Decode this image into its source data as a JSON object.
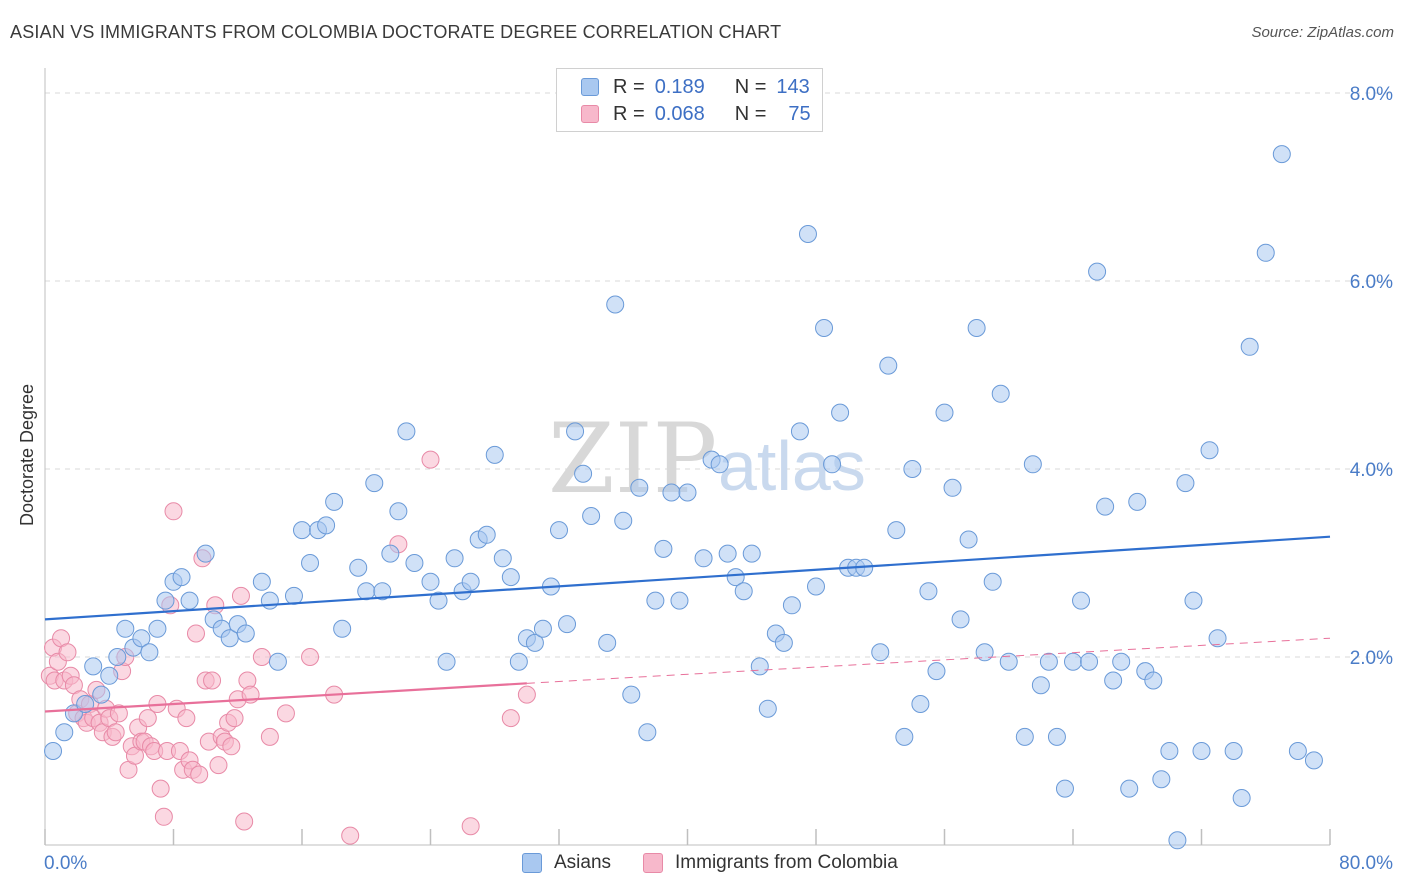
{
  "title": "ASIAN VS IMMIGRANTS FROM COLOMBIA DOCTORATE DEGREE CORRELATION CHART",
  "source": "Source: ZipAtlas.com",
  "watermark": {
    "zip": "ZIP",
    "atlas": "atlas"
  },
  "legend": {
    "rows": [
      {
        "r_label": "R =",
        "r_value": "0.189",
        "n_label": "N =",
        "n_value": "143"
      },
      {
        "r_label": "R =",
        "r_value": "0.068",
        "n_label": "N =",
        "n_value": "75"
      }
    ]
  },
  "colors": {
    "asians_fill": "#a9c8f0",
    "asians_stroke": "#6a9ad8",
    "asians_line": "#2f6fce",
    "colombia_fill": "#f7b8cb",
    "colombia_stroke": "#e88aa7",
    "colombia_line": "#e8709a",
    "grid": "#d9d9d9",
    "tick_text": "#4a7cc7"
  },
  "chart_data": {
    "type": "scatter",
    "title": "ASIAN VS IMMIGRANTS FROM COLOMBIA DOCTORATE DEGREE CORRELATION CHART",
    "xlabel": "",
    "ylabel": "Doctorate Degree",
    "xlim": [
      0,
      80
    ],
    "ylim": [
      0,
      8
    ],
    "x_tick_labels": [
      "0.0%",
      "80.0%"
    ],
    "y_ticks": [
      2,
      4,
      6,
      8
    ],
    "y_tick_labels": [
      "2.0%",
      "4.0%",
      "6.0%",
      "8.0%"
    ],
    "grid": true,
    "legend_position": "bottom-center",
    "series": [
      {
        "name": "Asians",
        "r": 0.189,
        "n": 143,
        "trend": {
          "x": [
            0,
            80
          ],
          "y": [
            2.4,
            3.28
          ]
        },
        "points": [
          [
            0.5,
            1.0
          ],
          [
            1.2,
            1.2
          ],
          [
            1.8,
            1.4
          ],
          [
            2.5,
            1.5
          ],
          [
            3.0,
            1.9
          ],
          [
            3.5,
            1.6
          ],
          [
            4.0,
            1.8
          ],
          [
            4.5,
            2.0
          ],
          [
            5.0,
            2.3
          ],
          [
            5.5,
            2.1
          ],
          [
            6.0,
            2.2
          ],
          [
            6.5,
            2.05
          ],
          [
            7.0,
            2.3
          ],
          [
            7.5,
            2.6
          ],
          [
            8.0,
            2.8
          ],
          [
            8.5,
            2.85
          ],
          [
            9.0,
            2.6
          ],
          [
            10.0,
            3.1
          ],
          [
            10.5,
            2.4
          ],
          [
            11.0,
            2.3
          ],
          [
            11.5,
            2.2
          ],
          [
            12.0,
            2.35
          ],
          [
            12.5,
            2.25
          ],
          [
            13.5,
            2.8
          ],
          [
            14.0,
            2.6
          ],
          [
            14.5,
            1.95
          ],
          [
            15.5,
            2.65
          ],
          [
            16.0,
            3.35
          ],
          [
            16.5,
            3.0
          ],
          [
            17.0,
            3.35
          ],
          [
            17.5,
            3.4
          ],
          [
            18.0,
            3.65
          ],
          [
            18.5,
            2.3
          ],
          [
            19.5,
            2.95
          ],
          [
            20.0,
            2.7
          ],
          [
            20.5,
            3.85
          ],
          [
            21.0,
            2.7
          ],
          [
            21.5,
            3.1
          ],
          [
            22.0,
            3.55
          ],
          [
            22.5,
            4.4
          ],
          [
            23.0,
            3.0
          ],
          [
            24.0,
            2.8
          ],
          [
            24.5,
            2.6
          ],
          [
            25.0,
            1.95
          ],
          [
            25.5,
            3.05
          ],
          [
            26.0,
            2.7
          ],
          [
            26.5,
            2.8
          ],
          [
            27.0,
            3.25
          ],
          [
            27.5,
            3.3
          ],
          [
            28.0,
            4.15
          ],
          [
            28.5,
            3.05
          ],
          [
            29.0,
            2.85
          ],
          [
            29.5,
            1.95
          ],
          [
            30.0,
            2.2
          ],
          [
            30.5,
            2.15
          ],
          [
            31.0,
            2.3
          ],
          [
            31.5,
            2.75
          ],
          [
            32.0,
            3.35
          ],
          [
            32.5,
            2.35
          ],
          [
            33.0,
            4.4
          ],
          [
            33.5,
            3.95
          ],
          [
            34.0,
            3.5
          ],
          [
            35.0,
            2.15
          ],
          [
            35.5,
            5.75
          ],
          [
            36.0,
            3.45
          ],
          [
            36.5,
            1.6
          ],
          [
            37.0,
            3.8
          ],
          [
            37.5,
            1.2
          ],
          [
            38.0,
            2.6
          ],
          [
            38.5,
            3.15
          ],
          [
            39.0,
            3.75
          ],
          [
            39.5,
            2.6
          ],
          [
            40.0,
            3.75
          ],
          [
            41.0,
            3.05
          ],
          [
            41.5,
            4.1
          ],
          [
            42.0,
            4.05
          ],
          [
            42.5,
            3.1
          ],
          [
            43.0,
            2.85
          ],
          [
            43.5,
            2.7
          ],
          [
            44.0,
            3.1
          ],
          [
            44.5,
            1.9
          ],
          [
            45.0,
            1.45
          ],
          [
            45.5,
            2.25
          ],
          [
            46.0,
            2.15
          ],
          [
            46.5,
            2.55
          ],
          [
            47.0,
            4.4
          ],
          [
            47.5,
            6.5
          ],
          [
            48.0,
            2.75
          ],
          [
            48.5,
            5.5
          ],
          [
            49.0,
            4.05
          ],
          [
            49.5,
            4.6
          ],
          [
            50.0,
            2.95
          ],
          [
            50.5,
            2.95
          ],
          [
            51.0,
            2.95
          ],
          [
            52.0,
            2.05
          ],
          [
            52.5,
            5.1
          ],
          [
            53.0,
            3.35
          ],
          [
            53.5,
            1.15
          ],
          [
            54.0,
            4.0
          ],
          [
            54.5,
            1.5
          ],
          [
            55.0,
            2.7
          ],
          [
            55.5,
            1.85
          ],
          [
            56.0,
            4.6
          ],
          [
            56.5,
            3.8
          ],
          [
            57.0,
            2.4
          ],
          [
            57.5,
            3.25
          ],
          [
            58.0,
            5.5
          ],
          [
            58.5,
            2.05
          ],
          [
            59.0,
            2.8
          ],
          [
            59.5,
            4.8
          ],
          [
            60.0,
            1.95
          ],
          [
            61.0,
            1.15
          ],
          [
            61.5,
            4.05
          ],
          [
            62.0,
            1.7
          ],
          [
            62.5,
            1.95
          ],
          [
            63.0,
            1.15
          ],
          [
            63.5,
            0.6
          ],
          [
            64.0,
            1.95
          ],
          [
            64.5,
            2.6
          ],
          [
            65.0,
            1.95
          ],
          [
            65.5,
            6.1
          ],
          [
            66.0,
            3.6
          ],
          [
            66.5,
            1.75
          ],
          [
            67.0,
            1.95
          ],
          [
            67.5,
            0.6
          ],
          [
            68.0,
            3.65
          ],
          [
            68.5,
            1.85
          ],
          [
            69.0,
            1.75
          ],
          [
            69.5,
            0.7
          ],
          [
            70.0,
            1.0
          ],
          [
            70.5,
            0.05
          ],
          [
            71.0,
            3.85
          ],
          [
            71.5,
            2.6
          ],
          [
            72.0,
            1.0
          ],
          [
            72.5,
            4.2
          ],
          [
            73.0,
            2.2
          ],
          [
            74.0,
            1.0
          ],
          [
            74.5,
            0.5
          ],
          [
            75.0,
            5.3
          ],
          [
            76.0,
            6.3
          ],
          [
            77.0,
            7.35
          ],
          [
            78.0,
            1.0
          ],
          [
            79.0,
            0.9
          ]
        ]
      },
      {
        "name": "Immigrants from Colombia",
        "r": 0.068,
        "n": 75,
        "trend": {
          "x": [
            0,
            30
          ],
          "y": [
            1.42,
            1.72
          ]
        },
        "trend_dashed": {
          "x": [
            30,
            80
          ],
          "y": [
            1.72,
            2.2
          ]
        },
        "points": [
          [
            0.3,
            1.8
          ],
          [
            0.5,
            2.1
          ],
          [
            0.6,
            1.75
          ],
          [
            0.8,
            1.95
          ],
          [
            1.0,
            2.2
          ],
          [
            1.2,
            1.75
          ],
          [
            1.4,
            2.05
          ],
          [
            1.6,
            1.8
          ],
          [
            1.8,
            1.7
          ],
          [
            2.0,
            1.4
          ],
          [
            2.2,
            1.55
          ],
          [
            2.4,
            1.35
          ],
          [
            2.6,
            1.3
          ],
          [
            2.8,
            1.5
          ],
          [
            3.0,
            1.35
          ],
          [
            3.2,
            1.65
          ],
          [
            3.4,
            1.3
          ],
          [
            3.6,
            1.2
          ],
          [
            3.8,
            1.45
          ],
          [
            4.0,
            1.35
          ],
          [
            4.2,
            1.15
          ],
          [
            4.4,
            1.2
          ],
          [
            4.6,
            1.4
          ],
          [
            4.8,
            1.85
          ],
          [
            5.0,
            2.0
          ],
          [
            5.2,
            0.8
          ],
          [
            5.4,
            1.05
          ],
          [
            5.6,
            0.95
          ],
          [
            5.8,
            1.25
          ],
          [
            6.0,
            1.1
          ],
          [
            6.2,
            1.1
          ],
          [
            6.4,
            1.35
          ],
          [
            6.6,
            1.05
          ],
          [
            6.8,
            1.0
          ],
          [
            7.0,
            1.5
          ],
          [
            7.2,
            0.6
          ],
          [
            7.4,
            0.3
          ],
          [
            7.6,
            1.0
          ],
          [
            7.8,
            2.55
          ],
          [
            8.0,
            3.55
          ],
          [
            8.2,
            1.45
          ],
          [
            8.4,
            1.0
          ],
          [
            8.6,
            0.8
          ],
          [
            8.8,
            1.35
          ],
          [
            9.0,
            0.9
          ],
          [
            9.2,
            0.8
          ],
          [
            9.4,
            2.25
          ],
          [
            9.6,
            0.75
          ],
          [
            9.8,
            3.05
          ],
          [
            10.0,
            1.75
          ],
          [
            10.2,
            1.1
          ],
          [
            10.4,
            1.75
          ],
          [
            10.6,
            2.55
          ],
          [
            10.8,
            0.85
          ],
          [
            11.0,
            1.15
          ],
          [
            11.2,
            1.1
          ],
          [
            11.4,
            1.3
          ],
          [
            11.6,
            1.05
          ],
          [
            11.8,
            1.35
          ],
          [
            12.0,
            1.55
          ],
          [
            12.2,
            2.65
          ],
          [
            12.4,
            0.25
          ],
          [
            12.6,
            1.75
          ],
          [
            12.8,
            1.6
          ],
          [
            13.5,
            2.0
          ],
          [
            14.0,
            1.15
          ],
          [
            15.0,
            1.4
          ],
          [
            16.5,
            2.0
          ],
          [
            18.0,
            1.6
          ],
          [
            19.0,
            0.1
          ],
          [
            22.0,
            3.2
          ],
          [
            24.0,
            4.1
          ],
          [
            26.5,
            0.2
          ],
          [
            29.0,
            1.35
          ],
          [
            30.0,
            1.6
          ]
        ]
      }
    ]
  },
  "bottom_legend": {
    "asians": "Asians",
    "colombia": "Immigrants from Colombia"
  }
}
